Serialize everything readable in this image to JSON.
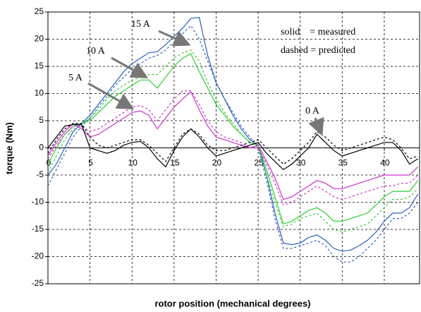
{
  "chart_data": {
    "type": "line",
    "x_label": "rotor position (mechanical degrees)",
    "y_label": "torque (Nm)",
    "xlim": [
      0,
      44.2
    ],
    "ylim": [
      -25,
      25
    ],
    "xticks": [
      0,
      5,
      10,
      15,
      20,
      25,
      30,
      35,
      40
    ],
    "yticks": [
      -25,
      -20,
      -15,
      -10,
      -5,
      0,
      5,
      10,
      15,
      20,
      25
    ],
    "grid": true,
    "x": [
      0,
      1,
      2,
      3,
      4,
      5,
      6,
      7,
      8,
      9,
      10,
      11,
      12,
      13,
      14,
      15,
      16,
      17,
      18,
      19,
      20,
      21,
      22,
      23,
      24,
      25,
      26,
      27,
      28,
      29,
      30,
      31,
      32,
      33,
      34,
      35,
      36,
      37,
      38,
      39,
      40,
      41,
      42,
      43,
      44
    ],
    "series": [
      {
        "color": "#2a5fbf",
        "dashed": false,
        "values": [
          -5,
          -3,
          0,
          3,
          4.5,
          6,
          8,
          10,
          12,
          14,
          15.5,
          16.5,
          17.5,
          17.7,
          19,
          20.5,
          22,
          23.8,
          24,
          17,
          12,
          9,
          6,
          3.5,
          1.5,
          0.5,
          -5,
          -12,
          -17.5,
          -17.8,
          -17.5,
          -16.5,
          -16,
          -17,
          -18.5,
          -19,
          -18.8,
          -18,
          -17,
          -15.5,
          -13.5,
          -12,
          -12,
          -11,
          -8.5
        ]
      },
      {
        "color": "#2a5fbf",
        "dashed": true,
        "values": [
          -7,
          -4,
          -1,
          2,
          4,
          5.5,
          7.5,
          9.5,
          11.5,
          13,
          14.5,
          15.5,
          16.5,
          17,
          18,
          19.5,
          21,
          22.5,
          20,
          16,
          12,
          9,
          6.5,
          4,
          2,
          0,
          -6,
          -13,
          -18.5,
          -18.5,
          -18,
          -17.5,
          -17,
          -18,
          -20,
          -21,
          -21,
          -20,
          -18.5,
          -17,
          -15,
          -13,
          -13,
          -12,
          -10
        ]
      },
      {
        "color": "#33cc33",
        "dashed": false,
        "values": [
          -3,
          0,
          2.5,
          4,
          4.5,
          5,
          6.5,
          8,
          9.5,
          10.5,
          11.5,
          12.5,
          12.5,
          11,
          13,
          15,
          16.5,
          17.3,
          14,
          11,
          8,
          6,
          4,
          2.5,
          1,
          0.5,
          -4,
          -9,
          -14,
          -13.5,
          -12.5,
          -11.5,
          -11,
          -12,
          -13.5,
          -13.5,
          -13,
          -12.5,
          -12,
          -10.5,
          -9,
          -8,
          -8,
          -8,
          -6
        ]
      },
      {
        "color": "#33cc33",
        "dashed": true,
        "values": [
          -4.5,
          -1.5,
          1.5,
          3.5,
          4.5,
          5.5,
          7,
          9,
          10.5,
          11.5,
          12.5,
          13,
          13.5,
          13.5,
          15,
          16.5,
          17.5,
          18,
          16,
          12,
          9,
          6.5,
          4.5,
          2.5,
          1,
          0,
          -5,
          -10,
          -14.5,
          -14,
          -13,
          -12.5,
          -12,
          -13.5,
          -15,
          -15.5,
          -15,
          -14.5,
          -14,
          -12.5,
          -11,
          -9.5,
          -9.5,
          -9,
          -7.5
        ]
      },
      {
        "color": "#cc33cc",
        "dashed": false,
        "values": [
          -1.5,
          1,
          3,
          4.5,
          3.5,
          2,
          2.5,
          3.5,
          4.5,
          5.5,
          6.5,
          6.8,
          6,
          3.5,
          5.5,
          7.5,
          9,
          10.3,
          7,
          4,
          2,
          1.5,
          1,
          0.5,
          0,
          0.5,
          -2.5,
          -5.5,
          -9.5,
          -9,
          -8,
          -7,
          -6,
          -6.5,
          -7.5,
          -7.5,
          -7,
          -6.5,
          -6,
          -5.5,
          -5,
          -5,
          -5,
          -5,
          -3.5
        ]
      },
      {
        "color": "#cc33cc",
        "dashed": true,
        "values": [
          -2,
          0.5,
          2.5,
          4,
          4,
          3,
          3.5,
          4.5,
          5.5,
          6.5,
          7.5,
          7.8,
          7,
          5,
          7,
          9,
          10.5,
          10.5,
          8,
          5,
          3,
          2,
          1.5,
          1,
          0,
          0,
          -3,
          -6.5,
          -10.5,
          -10,
          -9,
          -8,
          -7,
          -8,
          -9,
          -9.5,
          -9,
          -8.5,
          -8,
          -7.5,
          -7,
          -7,
          -6.5,
          -6.5,
          -5
        ]
      },
      {
        "color": "#000000",
        "dashed": false,
        "values": [
          0,
          2,
          4,
          4.3,
          4.3,
          0,
          -0.5,
          -1,
          -0.5,
          0.5,
          1,
          1.2,
          0,
          -2,
          -3.5,
          -0.5,
          2,
          3.5,
          2,
          0,
          -1.5,
          -1,
          -0.5,
          0,
          0.5,
          1,
          -1,
          -2.5,
          -4,
          -3,
          -1.5,
          0,
          2.5,
          1,
          -0.5,
          -1.5,
          -1,
          -0.5,
          0,
          0.5,
          1,
          1,
          -0.5,
          -3,
          -2
        ]
      },
      {
        "color": "#000000",
        "dashed": true,
        "values": [
          -1,
          1.5,
          3.5,
          4.5,
          4.5,
          2,
          0.5,
          0,
          0.5,
          1,
          1.5,
          1.5,
          0.5,
          -1,
          -2.5,
          0,
          2.5,
          3.5,
          2.5,
          0.5,
          -0.5,
          -0.5,
          0,
          0.5,
          1,
          1.5,
          0,
          -1.5,
          -3,
          -2,
          -0.5,
          1,
          3,
          2,
          0.5,
          -0.5,
          0,
          0.5,
          1,
          1.5,
          2,
          1.5,
          0,
          -2,
          -1.5
        ]
      }
    ],
    "annotations": [
      "15 A",
      "10 A",
      "5 A",
      "0 A",
      "solid    = measured",
      "dashed = predicted"
    ]
  }
}
